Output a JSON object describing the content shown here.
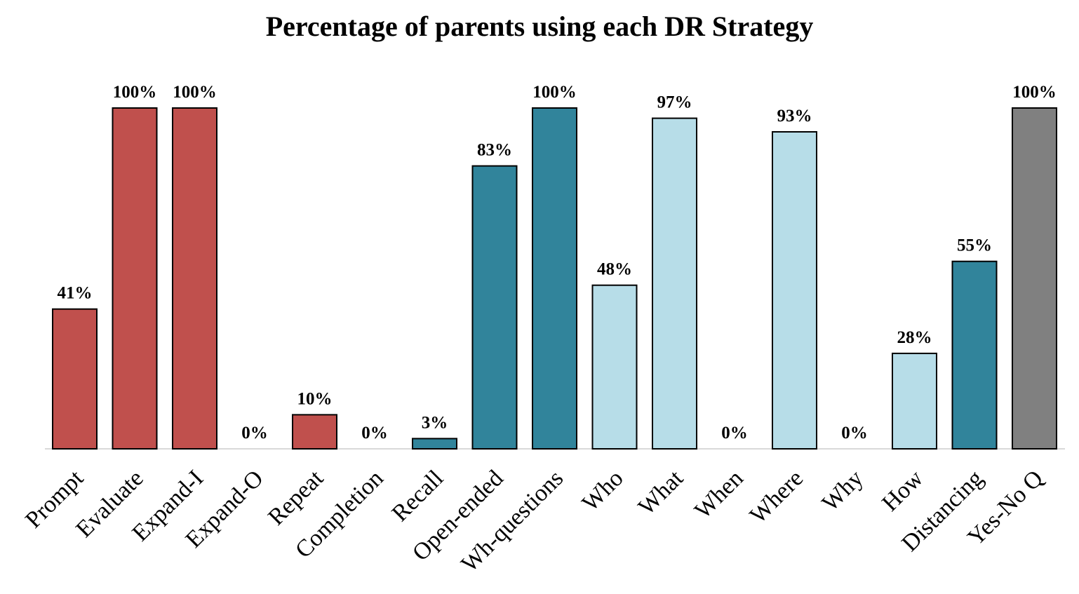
{
  "chart_data": {
    "type": "bar",
    "title": "Percentage of parents using each DR Strategy",
    "xlabel": "",
    "ylabel": "",
    "ylim": [
      0,
      100
    ],
    "grid": false,
    "legend": "none",
    "categories": [
      "Prompt",
      "Evaluate",
      "Expand-I",
      "Expand-O",
      "Repeat",
      "Completion",
      "Recall",
      "Open-ended",
      "Wh-questions",
      "Who",
      "What",
      "When",
      "Where",
      "Why",
      "How",
      "Distancing",
      "Yes-No Q"
    ],
    "values": [
      41,
      100,
      100,
      0,
      10,
      0,
      3,
      83,
      100,
      48,
      97,
      0,
      93,
      0,
      28,
      55,
      100
    ],
    "data_labels": [
      "41%",
      "100%",
      "100%",
      "0%",
      "10%",
      "0%",
      "3%",
      "83%",
      "100%",
      "48%",
      "97%",
      "0%",
      "93%",
      "0%",
      "28%",
      "55%",
      "100%"
    ],
    "bar_colors": [
      "#c0504d",
      "#c0504d",
      "#c0504d",
      "#c0504d",
      "#c0504d",
      "#c0504d",
      "#31849b",
      "#31849b",
      "#31849b",
      "#b7dde8",
      "#b7dde8",
      "#b7dde8",
      "#b7dde8",
      "#b7dde8",
      "#b7dde8",
      "#31849b",
      "#808080"
    ],
    "colors": {
      "red": "#c0504d",
      "teal": "#31849b",
      "light_blue": "#b7dde8",
      "gray": "#808080",
      "axis": "#d9d9d9",
      "outline": "#000000"
    }
  }
}
